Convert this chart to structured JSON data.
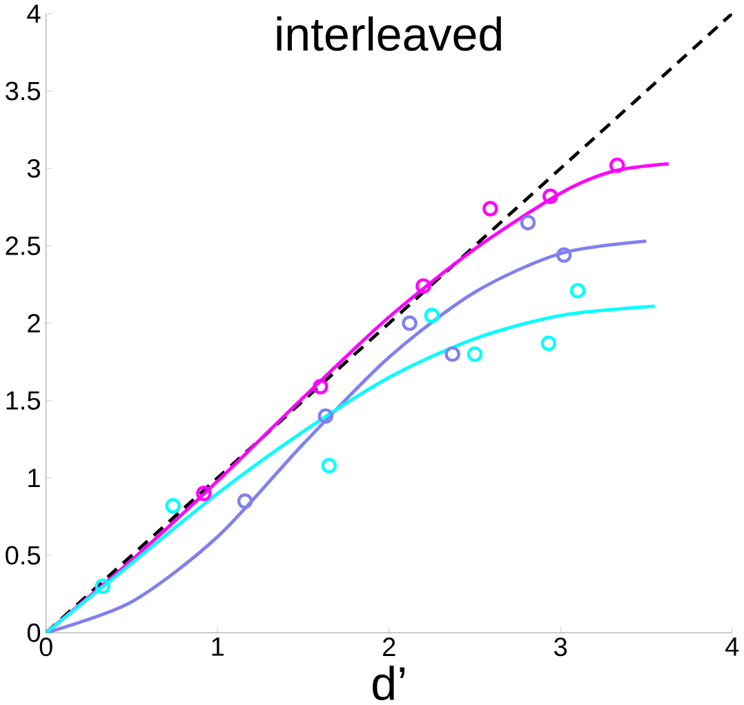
{
  "chart_data": {
    "type": "scatter",
    "title": "interleaved",
    "xlabel": "d’",
    "xlim": [
      0,
      4
    ],
    "ylim": [
      0,
      4
    ],
    "xticks": [
      0,
      1,
      2,
      3,
      4
    ],
    "yticks": [
      0,
      0.5,
      1,
      1.5,
      2,
      2.5,
      3,
      3.5,
      4
    ],
    "marker": "circle",
    "series": [
      {
        "type": "line",
        "color": "#000000",
        "line_style": "dashed",
        "marker": "none",
        "x": [
          0,
          4
        ],
        "values": [
          0,
          4
        ]
      },
      {
        "type": "line",
        "color": "#ff00ff",
        "marker": "none",
        "x": [
          0,
          0.5,
          1,
          1.5,
          2,
          2.5,
          3,
          3.3,
          3.63
        ],
        "values": [
          0,
          0.47,
          0.98,
          1.52,
          2.04,
          2.48,
          2.84,
          2.98,
          3.03
        ]
      },
      {
        "type": "line",
        "color": "#8080f0",
        "marker": "none",
        "x": [
          0,
          0.5,
          1,
          1.5,
          2,
          2.5,
          3,
          3.5
        ],
        "values": [
          0,
          0.2,
          0.62,
          1.22,
          1.78,
          2.2,
          2.45,
          2.53
        ]
      },
      {
        "type": "line",
        "color": "#00ffff",
        "marker": "none",
        "x": [
          0,
          0.5,
          1,
          1.5,
          2,
          2.5,
          3,
          3.55
        ],
        "values": [
          0,
          0.45,
          0.9,
          1.3,
          1.65,
          1.9,
          2.05,
          2.11
        ]
      },
      {
        "color": "#ff00ff",
        "x": [
          0.92,
          1.6,
          2.2,
          2.59,
          2.94,
          3.33
        ],
        "values": [
          0.9,
          1.59,
          2.24,
          2.74,
          2.82,
          3.02
        ]
      },
      {
        "color": "#8080f0",
        "x": [
          1.16,
          1.63,
          2.12,
          2.37,
          2.81,
          3.02
        ],
        "values": [
          0.85,
          1.4,
          2.0,
          1.8,
          2.65,
          2.44
        ]
      },
      {
        "color": "#00ffff",
        "x": [
          0.33,
          0.74,
          1.65,
          2.25,
          2.5,
          2.93,
          3.1
        ],
        "values": [
          0.3,
          0.82,
          1.08,
          2.05,
          1.8,
          1.87,
          2.21
        ]
      }
    ]
  }
}
